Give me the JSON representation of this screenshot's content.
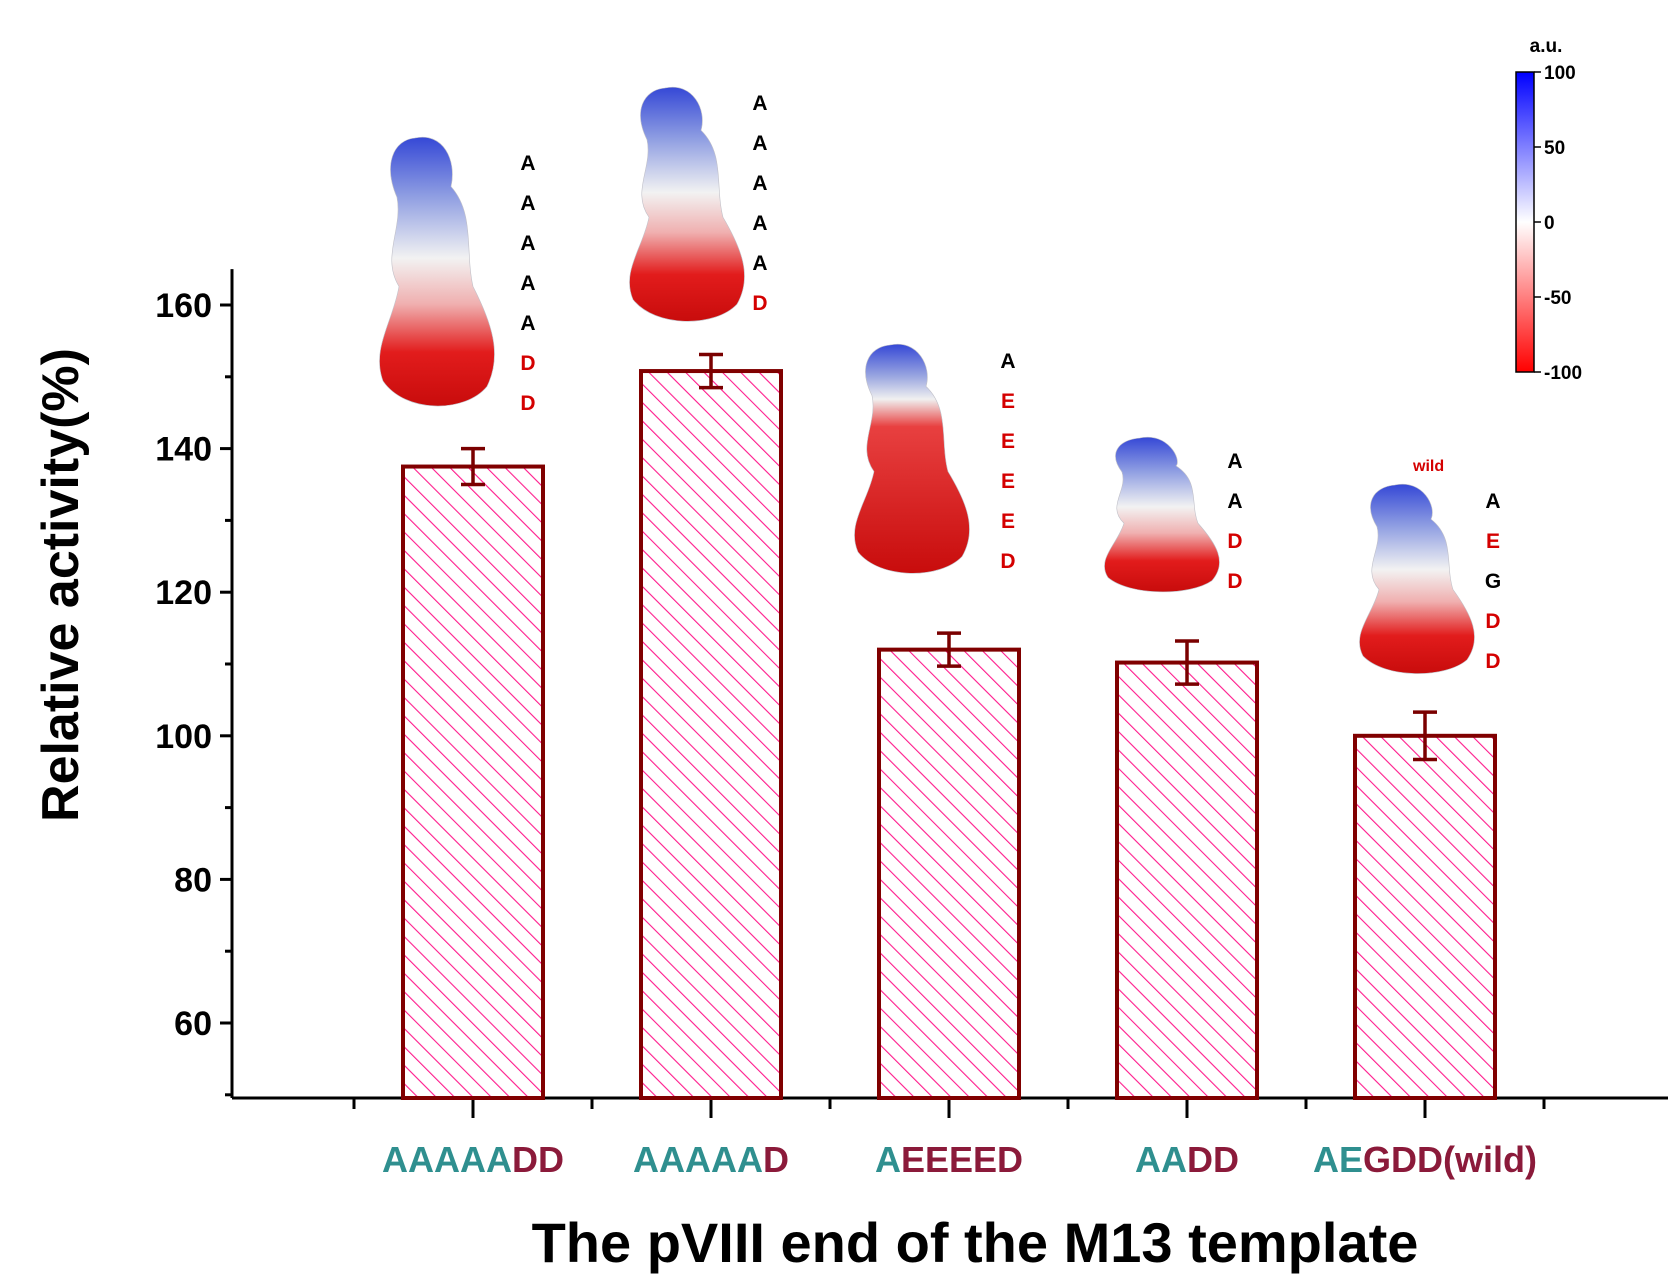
{
  "chart_data": {
    "type": "bar",
    "xlabel": "The pVIII end of the M13 template",
    "ylabel": "Relative activity(%)",
    "ylim": [
      50,
      165
    ],
    "yticks": [
      60,
      80,
      100,
      120,
      140,
      160
    ],
    "grid": false,
    "categories": [
      {
        "parts": [
          {
            "text": "AAAAA",
            "tone": "teal"
          },
          {
            "text": "DD",
            "tone": "maroon"
          }
        ]
      },
      {
        "parts": [
          {
            "text": "AAAAA",
            "tone": "teal"
          },
          {
            "text": "D",
            "tone": "maroon"
          }
        ]
      },
      {
        "parts": [
          {
            "text": "A",
            "tone": "teal"
          },
          {
            "text": "EEEED",
            "tone": "maroon"
          }
        ]
      },
      {
        "parts": [
          {
            "text": "AA",
            "tone": "teal"
          },
          {
            "text": "DD",
            "tone": "maroon"
          }
        ]
      },
      {
        "parts": [
          {
            "text": "AE",
            "tone": "teal"
          },
          {
            "text": "G",
            "tone": "maroon"
          },
          {
            "text": "DD(wild)",
            "tone": "maroon"
          }
        ]
      }
    ],
    "values": [
      137.5,
      150.8,
      112.0,
      110.2,
      100.0
    ],
    "errors": [
      2.5,
      2.3,
      2.3,
      3.0,
      3.3
    ],
    "insets": [
      {
        "letters": [
          "A",
          "A",
          "A",
          "A",
          "A",
          "D",
          "D"
        ],
        "tag": ""
      },
      {
        "letters": [
          "A",
          "A",
          "A",
          "A",
          "A",
          "D"
        ],
        "tag": ""
      },
      {
        "letters": [
          "A",
          "E",
          "E",
          "E",
          "E",
          "D"
        ],
        "tag": ""
      },
      {
        "letters": [
          "A",
          "A",
          "D",
          "D"
        ],
        "tag": ""
      },
      {
        "letters": [
          "A",
          "E",
          "G",
          "D",
          "D"
        ],
        "tag": "wild"
      }
    ],
    "colorbar": {
      "title": "a.u.",
      "ticks": [
        "100",
        "50",
        "0",
        "-50",
        "-100"
      ],
      "colors": {
        "top": "#0000ff",
        "middle": "#ffffff",
        "bottom": "#ff0000"
      }
    },
    "colors": {
      "bar_edge": "#800000",
      "hatch": "#ff1a8c",
      "error": "#7a0000",
      "teal": "#2f8f8f",
      "maroon": "#8b1a3a",
      "letter_pos": "#000000",
      "letter_neg": "#d40000"
    }
  }
}
